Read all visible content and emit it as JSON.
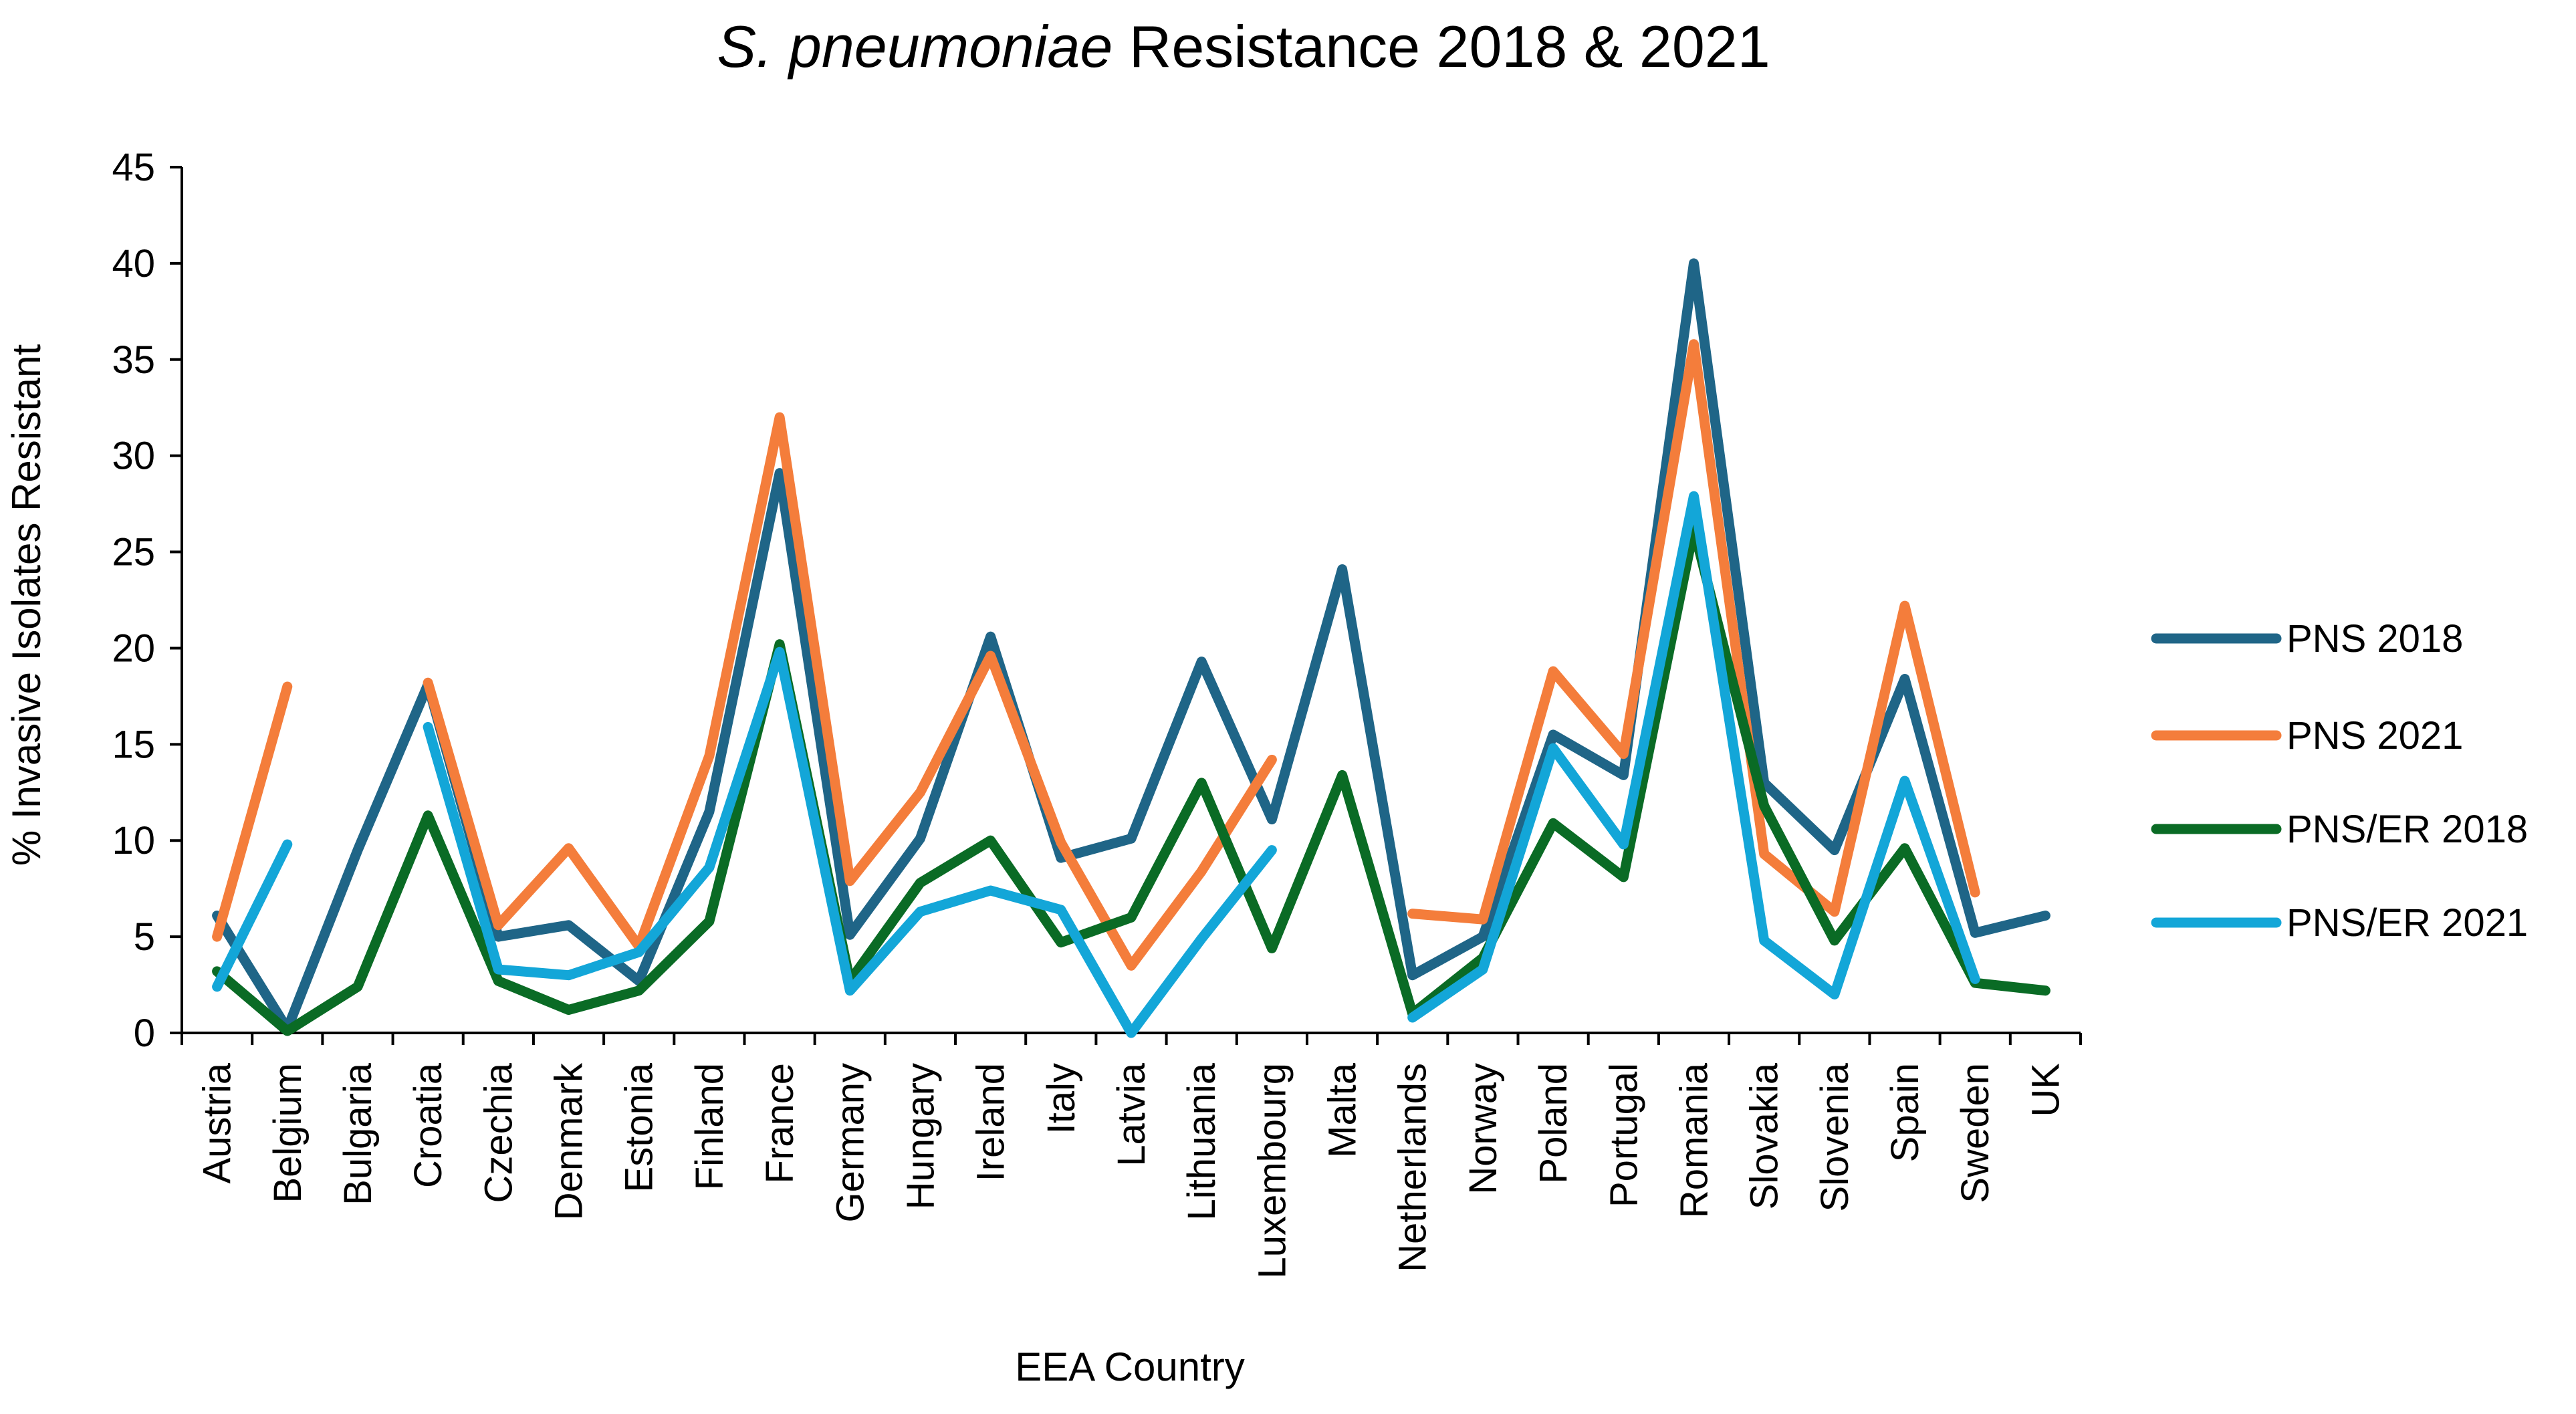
{
  "chart_data": {
    "type": "line",
    "title_italic": "S. pneumoniae",
    "title_rest": " Resistance 2018 & 2021",
    "xlabel": "EEA Country",
    "ylabel": "% Invasive Isolates Resistant",
    "ylim": [
      0,
      45
    ],
    "yticks": [
      "0",
      "5",
      "10",
      "15",
      "20",
      "25",
      "30",
      "35",
      "40",
      "45"
    ],
    "grid": false,
    "legend_position": "right",
    "categories": [
      "Austria",
      "Belgium",
      "Bulgaria",
      "Croatia",
      "Czechia",
      "Denmark",
      "Estonia",
      "Finland",
      "France",
      "Germany",
      "Hungary",
      "Ireland",
      "Italy",
      "Latvia",
      "Lithuania",
      "Luxembourg",
      "Malta",
      "Netherlands",
      "Norway",
      "Poland",
      "Portugal",
      "Romania",
      "Slovakia",
      "Slovenia",
      "Spain",
      "Sweden",
      "UK"
    ],
    "series": [
      {
        "name": "PNS 2018",
        "color": "#1f6587",
        "values": [
          6.1,
          0.2,
          9.5,
          18.1,
          5.0,
          5.6,
          2.7,
          11.5,
          29.1,
          5.1,
          10.1,
          20.6,
          9.1,
          10.1,
          19.3,
          11.1,
          24.1,
          3.0,
          5.0,
          15.5,
          13.4,
          40.0,
          13.0,
          9.5,
          18.4,
          5.2,
          6.1
        ]
      },
      {
        "name": "PNS 2021",
        "color": "#f47d3b",
        "values": [
          5.0,
          18.0,
          null,
          18.2,
          5.6,
          9.6,
          4.5,
          14.4,
          32.0,
          7.9,
          12.5,
          19.6,
          9.9,
          3.5,
          8.4,
          14.2,
          null,
          6.2,
          5.9,
          18.8,
          14.5,
          35.8,
          9.3,
          6.3,
          22.2,
          7.3,
          null
        ]
      },
      {
        "name": "PNS/ER  2018",
        "color": "#0a6b25",
        "values": [
          3.2,
          0.1,
          2.4,
          11.3,
          2.7,
          1.2,
          2.2,
          5.8,
          20.2,
          2.7,
          7.8,
          10.0,
          4.7,
          6.0,
          13.0,
          4.4,
          13.4,
          1.0,
          3.9,
          10.9,
          8.1,
          26.2,
          11.8,
          4.8,
          9.6,
          2.6,
          2.2
        ]
      },
      {
        "name": "PNS/ER  2021",
        "color": "#13a6d8",
        "values": [
          2.4,
          9.8,
          null,
          15.9,
          3.3,
          3.0,
          4.2,
          8.6,
          19.8,
          2.2,
          6.3,
          7.4,
          6.4,
          0.0,
          4.9,
          9.5,
          null,
          0.8,
          3.3,
          14.8,
          9.8,
          27.9,
          4.8,
          2.0,
          13.1,
          2.8,
          null
        ]
      }
    ]
  }
}
